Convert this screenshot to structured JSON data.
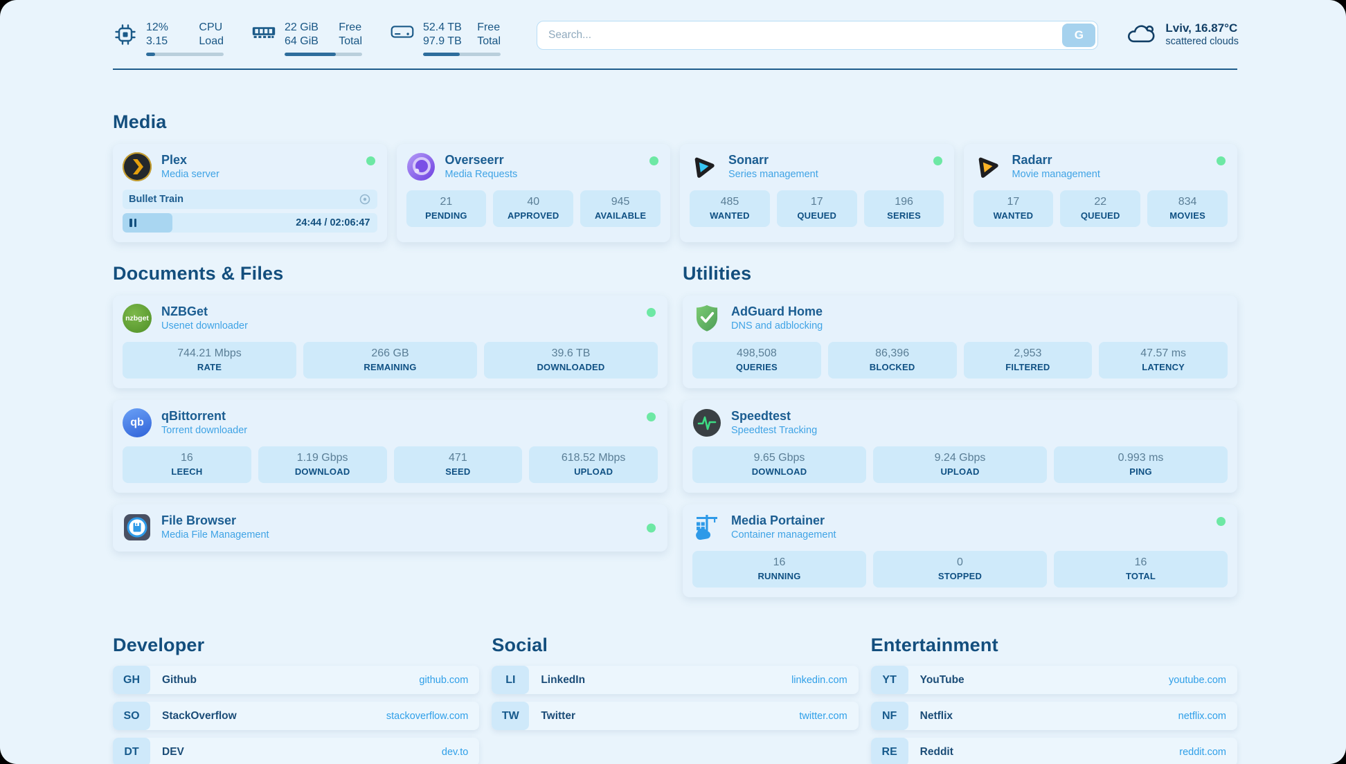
{
  "colors": {
    "page_bg": "#e9f4fc",
    "accent_navy": "#14507e",
    "subtitle_blue": "#3fa3e5",
    "status_green": "#6de8a4",
    "link_blue": "#2f9fe8",
    "stat_box_bg": "#cfeafa",
    "progress_fill": "#2e6d9c"
  },
  "topbar": {
    "widgets": [
      {
        "icon": "cpu-icon",
        "col1": [
          "12%",
          "3.15"
        ],
        "col2": [
          "CPU",
          "Load"
        ],
        "progress": 12
      },
      {
        "icon": "memory-icon",
        "col1": [
          "22 GiB",
          "64 GiB"
        ],
        "col2": [
          "Free",
          "Total"
        ],
        "progress": 66
      },
      {
        "icon": "disk-icon",
        "col1": [
          "52.4 TB",
          "97.9 TB"
        ],
        "col2": [
          "Free",
          "Total"
        ],
        "progress": 47
      }
    ],
    "search": {
      "placeholder": "Search...",
      "button_label": "G",
      "button_icon": "google-search-icon"
    },
    "weather": {
      "icon": "cloud-icon",
      "location": "Lviv, 16.87°C",
      "condition": "scattered clouds"
    }
  },
  "sections": {
    "media": {
      "title": "Media",
      "plex": {
        "icon": "plex-icon",
        "name": "Plex",
        "subtitle": "Media server",
        "online": true,
        "now_playing": "Bullet Train",
        "session_icon": "bullseye-icon",
        "state_icon": "pause-icon",
        "time": "24:44 / 02:06:47",
        "progress": 19.5
      },
      "overseerr": {
        "icon": "overseerr-icon",
        "name": "Overseerr",
        "subtitle": "Media Requests",
        "online": true,
        "stats": [
          {
            "value": "21",
            "label": "PENDING"
          },
          {
            "value": "40",
            "label": "APPROVED"
          },
          {
            "value": "945",
            "label": "AVAILABLE"
          }
        ]
      },
      "sonarr": {
        "icon": "sonarr-icon",
        "name": "Sonarr",
        "subtitle": "Series management",
        "online": true,
        "stats": [
          {
            "value": "485",
            "label": "WANTED"
          },
          {
            "value": "17",
            "label": "QUEUED"
          },
          {
            "value": "196",
            "label": "SERIES"
          }
        ]
      },
      "radarr": {
        "icon": "radarr-icon",
        "name": "Radarr",
        "subtitle": "Movie management",
        "online": true,
        "stats": [
          {
            "value": "17",
            "label": "WANTED"
          },
          {
            "value": "22",
            "label": "QUEUED"
          },
          {
            "value": "834",
            "label": "MOVIES"
          }
        ]
      }
    },
    "documents": {
      "title": "Documents & Files",
      "nzbget": {
        "icon": "nzbget-icon",
        "icon_label": "nzbget",
        "name": "NZBGet",
        "subtitle": "Usenet downloader",
        "online": true,
        "stats": [
          {
            "value": "744.21 Mbps",
            "label": "RATE"
          },
          {
            "value": "266 GB",
            "label": "REMAINING"
          },
          {
            "value": "39.6 TB",
            "label": "DOWNLOADED"
          }
        ]
      },
      "qbittorrent": {
        "icon": "qbittorrent-icon",
        "icon_label": "qb",
        "name": "qBittorrent",
        "subtitle": "Torrent downloader",
        "online": true,
        "stats": [
          {
            "value": "16",
            "label": "LEECH"
          },
          {
            "value": "1.19 Gbps",
            "label": "DOWNLOAD"
          },
          {
            "value": "471",
            "label": "SEED"
          },
          {
            "value": "618.52 Mbps",
            "label": "UPLOAD"
          }
        ]
      },
      "filebrowser": {
        "icon": "filebrowser-icon",
        "name": "File Browser",
        "subtitle": "Media File Management",
        "online": true
      }
    },
    "utilities": {
      "title": "Utilities",
      "adguard": {
        "icon": "adguard-icon",
        "name": "AdGuard Home",
        "subtitle": "DNS and adblocking",
        "online": false,
        "stats": [
          {
            "value": "498,508",
            "label": "QUERIES"
          },
          {
            "value": "86,396",
            "label": "BLOCKED"
          },
          {
            "value": "2,953",
            "label": "FILTERED"
          },
          {
            "value": "47.57 ms",
            "label": "LATENCY"
          }
        ]
      },
      "speedtest": {
        "icon": "speedtest-icon",
        "name": "Speedtest",
        "subtitle": "Speedtest Tracking",
        "online": false,
        "stats": [
          {
            "value": "9.65 Gbps",
            "label": "DOWNLOAD"
          },
          {
            "value": "9.24 Gbps",
            "label": "UPLOAD"
          },
          {
            "value": "0.993 ms",
            "label": "PING"
          }
        ]
      },
      "portainer": {
        "icon": "portainer-icon",
        "name": "Media Portainer",
        "subtitle": "Container management",
        "online": true,
        "stats": [
          {
            "value": "16",
            "label": "RUNNING"
          },
          {
            "value": "0",
            "label": "STOPPED"
          },
          {
            "value": "16",
            "label": "TOTAL"
          }
        ]
      }
    }
  },
  "bookmarks": [
    {
      "title": "Developer",
      "items": [
        {
          "abbr": "GH",
          "name": "Github",
          "url": "github.com"
        },
        {
          "abbr": "SO",
          "name": "StackOverflow",
          "url": "stackoverflow.com"
        },
        {
          "abbr": "DT",
          "name": "DEV",
          "url": "dev.to"
        }
      ]
    },
    {
      "title": "Social",
      "items": [
        {
          "abbr": "LI",
          "name": "LinkedIn",
          "url": "linkedin.com"
        },
        {
          "abbr": "TW",
          "name": "Twitter",
          "url": "twitter.com"
        }
      ]
    },
    {
      "title": "Entertainment",
      "items": [
        {
          "abbr": "YT",
          "name": "YouTube",
          "url": "youtube.com"
        },
        {
          "abbr": "NF",
          "name": "Netflix",
          "url": "netflix.com"
        },
        {
          "abbr": "RE",
          "name": "Reddit",
          "url": "reddit.com"
        }
      ]
    }
  ]
}
